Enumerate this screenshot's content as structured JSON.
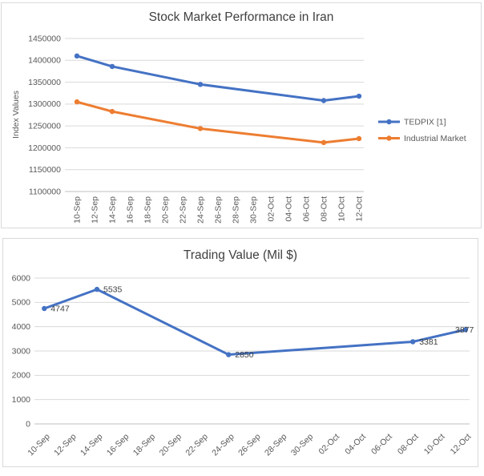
{
  "page": {
    "background": "#FFFFFF"
  },
  "theme": {
    "grid_color": "#D9D9D9",
    "axis_color": "#BFBFBF",
    "tick_color": "#595959",
    "title_color": "#404040",
    "data_label_color": "#404040",
    "panel_border": "#D9D9D9",
    "series_blue": "#4472C4",
    "series_orange": "#ED7D31"
  },
  "chart_data": [
    {
      "type": "line",
      "title": "Stock Market Performance in Iran",
      "xlabel": "",
      "ylabel": "Index Values",
      "ylim": [
        1100000,
        1450000
      ],
      "ytick_step": 50000,
      "grid": true,
      "legend_position": "right",
      "data_labels": false,
      "categories": [
        "10-Sep",
        "12-Sep",
        "14-Sep",
        "16-Sep",
        "18-Sep",
        "20-Sep",
        "22-Sep",
        "24-Sep",
        "26-Sep",
        "28-Sep",
        "30-Sep",
        "02-Oct",
        "04-Oct",
        "06-Oct",
        "08-Oct",
        "10-Oct",
        "12-Oct"
      ],
      "series": [
        {
          "name": "TEDPIX [1]",
          "color": "#4472C4",
          "points": [
            {
              "x": "10-Sep",
              "y": 1410000
            },
            {
              "x": "14-Sep",
              "y": 1386000
            },
            {
              "x": "24-Sep",
              "y": 1345000
            },
            {
              "x": "08-Oct",
              "y": 1308000
            },
            {
              "x": "12-Oct",
              "y": 1318000
            }
          ]
        },
        {
          "name": "Industrial Market",
          "color": "#ED7D31",
          "points": [
            {
              "x": "10-Sep",
              "y": 1305000
            },
            {
              "x": "14-Sep",
              "y": 1283000
            },
            {
              "x": "24-Sep",
              "y": 1244000
            },
            {
              "x": "08-Oct",
              "y": 1212000
            },
            {
              "x": "12-Oct",
              "y": 1221000
            }
          ]
        }
      ]
    },
    {
      "type": "line",
      "title": "Trading Value (Mil $)",
      "xlabel": "",
      "ylabel": "",
      "ylim": [
        0,
        6000
      ],
      "ytick_step": 1000,
      "grid": true,
      "legend_position": "none",
      "data_labels": true,
      "categories": [
        "10-Sep",
        "12-Sep",
        "14-Sep",
        "16-Sep",
        "18-Sep",
        "20-Sep",
        "22-Sep",
        "24-Sep",
        "26-Sep",
        "28-Sep",
        "30-Sep",
        "02-Oct",
        "04-Oct",
        "06-Oct",
        "08-Oct",
        "10-Oct",
        "12-Oct"
      ],
      "series": [
        {
          "color": "#4472C4",
          "points": [
            {
              "x": "10-Sep",
              "y": 4747
            },
            {
              "x": "14-Sep",
              "y": 5535
            },
            {
              "x": "24-Sep",
              "y": 2850
            },
            {
              "x": "08-Oct",
              "y": 3381
            },
            {
              "x": "12-Oct",
              "y": 3877
            }
          ]
        }
      ]
    }
  ]
}
